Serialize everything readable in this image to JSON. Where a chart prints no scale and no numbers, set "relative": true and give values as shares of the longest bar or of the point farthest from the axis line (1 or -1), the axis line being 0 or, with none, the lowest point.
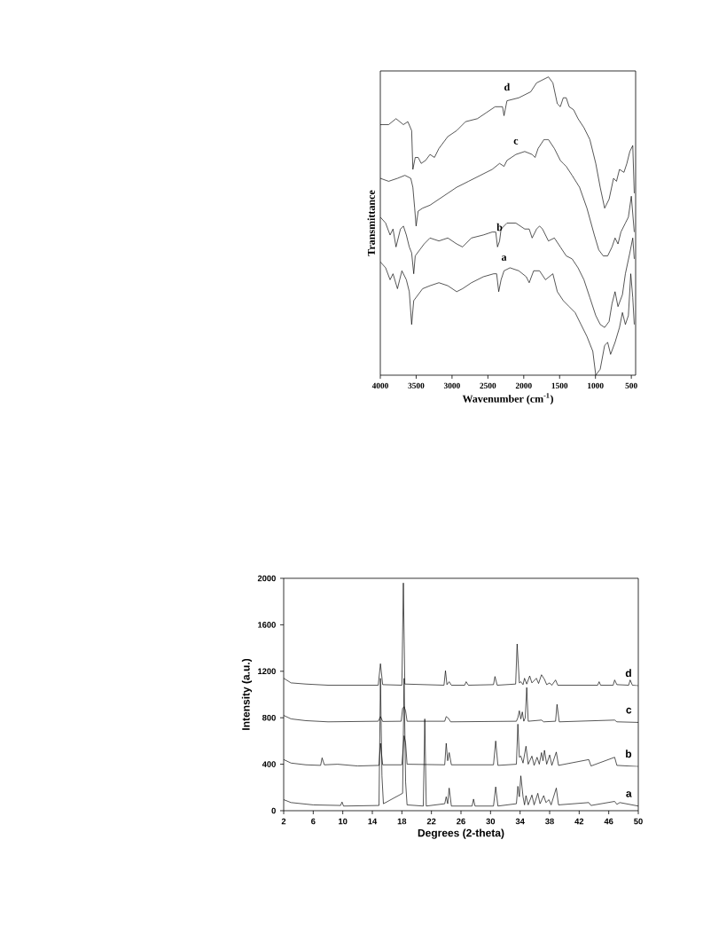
{
  "chart_data": [
    {
      "type": "line",
      "relative": true,
      "xlabel": "Wavenumber (cm$^{-1}$)",
      "ylabel": "Transmittance",
      "xlim": [
        4000,
        440
      ],
      "xticks": [
        4000,
        3500,
        3000,
        2500,
        2000,
        1500,
        1000,
        500
      ],
      "tick_labels": "x",
      "legend": false,
      "series": [
        {
          "name": "d",
          "color": "#000000",
          "x": [
            4000,
            3884,
            3781,
            3678,
            3616,
            3563,
            3546,
            3513,
            3472,
            3430,
            3369,
            3307,
            3245,
            3183,
            3059,
            2935,
            2811,
            2646,
            2523,
            2399,
            2296,
            2275,
            2234,
            2069,
            1903,
            1821,
            1738,
            1656,
            1594,
            1532,
            1490,
            1449,
            1408,
            1367,
            1305,
            1243,
            1161,
            1078,
            996,
            934,
            872,
            810,
            748,
            707,
            665,
            603,
            562,
            521,
            480,
            459
          ],
          "values": [
            0.84,
            0.84,
            0.86,
            0.84,
            0.85,
            0.82,
            0.69,
            0.73,
            0.73,
            0.71,
            0.72,
            0.74,
            0.73,
            0.76,
            0.8,
            0.82,
            0.85,
            0.86,
            0.88,
            0.9,
            0.9,
            0.87,
            0.92,
            0.93,
            0.95,
            0.98,
            0.99,
            1.0,
            0.98,
            0.91,
            0.9,
            0.93,
            0.93,
            0.9,
            0.89,
            0.86,
            0.83,
            0.79,
            0.71,
            0.63,
            0.56,
            0.59,
            0.66,
            0.65,
            0.69,
            0.68,
            0.71,
            0.75,
            0.77,
            0.61
          ]
        },
        {
          "name": "c",
          "color": "#000000",
          "x": [
            4000,
            3884,
            3761,
            3657,
            3575,
            3546,
            3521,
            3501,
            3472,
            3410,
            3307,
            3183,
            3059,
            2935,
            2770,
            2605,
            2440,
            2337,
            2275,
            2234,
            2110,
            1986,
            1883,
            1842,
            1800,
            1718,
            1656,
            1573,
            1490,
            1449,
            1408,
            1326,
            1222,
            1119,
            1016,
            954,
            892,
            830,
            769,
            727,
            686,
            645,
            583,
            541,
            500,
            459
          ],
          "values": [
            0.66,
            0.65,
            0.66,
            0.67,
            0.66,
            0.63,
            0.56,
            0.5,
            0.55,
            0.56,
            0.57,
            0.59,
            0.61,
            0.63,
            0.65,
            0.67,
            0.69,
            0.71,
            0.7,
            0.72,
            0.74,
            0.75,
            0.74,
            0.73,
            0.76,
            0.79,
            0.79,
            0.76,
            0.72,
            0.71,
            0.7,
            0.67,
            0.63,
            0.56,
            0.47,
            0.42,
            0.4,
            0.4,
            0.43,
            0.46,
            0.44,
            0.48,
            0.51,
            0.53,
            0.6,
            0.48
          ]
        },
        {
          "name": "b",
          "color": "#000000",
          "x": [
            4000,
            3926,
            3864,
            3823,
            3781,
            3719,
            3678,
            3637,
            3596,
            3563,
            3534,
            3513,
            3451,
            3389,
            3307,
            3183,
            3059,
            2935,
            2853,
            2729,
            2564,
            2440,
            2390,
            2366,
            2337,
            2316,
            2234,
            2110,
            1986,
            1924,
            1883,
            1821,
            1780,
            1738,
            1656,
            1573,
            1490,
            1408,
            1326,
            1243,
            1161,
            1078,
            996,
            934,
            872,
            810,
            769,
            727,
            686,
            624,
            583,
            521,
            480,
            459
          ],
          "values": [
            0.53,
            0.51,
            0.47,
            0.49,
            0.43,
            0.49,
            0.5,
            0.47,
            0.43,
            0.41,
            0.34,
            0.4,
            0.42,
            0.44,
            0.46,
            0.45,
            0.46,
            0.44,
            0.43,
            0.46,
            0.47,
            0.48,
            0.48,
            0.43,
            0.45,
            0.49,
            0.51,
            0.51,
            0.49,
            0.49,
            0.46,
            0.49,
            0.5,
            0.49,
            0.45,
            0.46,
            0.43,
            0.4,
            0.39,
            0.36,
            0.32,
            0.26,
            0.2,
            0.17,
            0.16,
            0.18,
            0.24,
            0.28,
            0.23,
            0.27,
            0.34,
            0.41,
            0.46,
            0.39
          ]
        },
        {
          "name": "a",
          "color": "#000000",
          "x": [
            4000,
            3926,
            3864,
            3823,
            3761,
            3699,
            3637,
            3596,
            3563,
            3534,
            3472,
            3410,
            3307,
            3183,
            3059,
            2935,
            2853,
            2729,
            2564,
            2419,
            2378,
            2349,
            2316,
            2275,
            2192,
            2069,
            1965,
            1924,
            1862,
            1780,
            1697,
            1594,
            1532,
            1449,
            1367,
            1284,
            1202,
            1119,
            1037,
            996,
            934,
            872,
            830,
            789,
            727,
            665,
            624,
            583,
            541,
            508,
            480,
            459
          ],
          "values": [
            0.38,
            0.36,
            0.32,
            0.34,
            0.29,
            0.35,
            0.32,
            0.28,
            0.17,
            0.25,
            0.27,
            0.29,
            0.3,
            0.31,
            0.3,
            0.28,
            0.29,
            0.31,
            0.33,
            0.34,
            0.34,
            0.28,
            0.32,
            0.35,
            0.36,
            0.35,
            0.33,
            0.31,
            0.35,
            0.35,
            0.32,
            0.34,
            0.28,
            0.25,
            0.23,
            0.21,
            0.17,
            0.13,
            0.08,
            0.0,
            0.02,
            0.1,
            0.11,
            0.07,
            0.11,
            0.16,
            0.21,
            0.17,
            0.2,
            0.34,
            0.26,
            0.17
          ]
        }
      ]
    },
    {
      "type": "line",
      "xlabel": "Degrees (2-theta)",
      "ylabel": "Intensity (a.u.)",
      "xlim": [
        2,
        50
      ],
      "ylim": [
        0,
        2000
      ],
      "xticks": [
        2,
        6,
        10,
        14,
        18,
        22,
        26,
        30,
        34,
        38,
        42,
        46,
        50
      ],
      "yticks": [
        0,
        400,
        800,
        1200,
        1600,
        2000
      ],
      "legend": false,
      "series": [
        {
          "name": "d",
          "color": "#000000",
          "x": [
            2,
            3,
            5,
            8,
            14.8,
            15.1,
            15.4,
            18,
            18.2,
            18.4,
            23.7,
            23.9,
            24.1,
            24.4,
            24.7,
            26.5,
            26.7,
            27,
            30.4,
            30.6,
            30.9,
            33.4,
            33.6,
            33.9,
            34.1,
            34.4,
            34.6,
            34.9,
            35.3,
            35.6,
            36.2,
            36.5,
            36.9,
            37.3,
            37.6,
            38,
            38.3,
            38.8,
            39.1,
            44.5,
            44.7,
            44.9,
            46.6,
            46.8,
            47.1,
            48.7,
            48.9,
            49.2,
            50
          ],
          "values": [
            1140,
            1100,
            1090,
            1080,
            1080,
            1265,
            1085,
            1080,
            1960,
            1090,
            1080,
            1205,
            1085,
            1110,
            1080,
            1080,
            1110,
            1080,
            1085,
            1155,
            1080,
            1090,
            1435,
            1100,
            1110,
            1085,
            1140,
            1090,
            1160,
            1100,
            1140,
            1095,
            1170,
            1130,
            1085,
            1100,
            1080,
            1125,
            1080,
            1080,
            1110,
            1080,
            1080,
            1125,
            1085,
            1080,
            1125,
            1080,
            1075
          ]
        },
        {
          "name": "c",
          "color": "#000000",
          "x": [
            2,
            3,
            5,
            8,
            14.8,
            15.1,
            15.4,
            17.9,
            18.1,
            18.3,
            18.5,
            18.7,
            23.8,
            24,
            24.3,
            24.6,
            33.5,
            33.7,
            33.9,
            34.1,
            34.3,
            34.5,
            34.7,
            34.9,
            35.1,
            36.9,
            37.2,
            38.8,
            39,
            39.3,
            46.8,
            47.1,
            50
          ],
          "values": [
            820,
            790,
            775,
            765,
            770,
            810,
            768,
            770,
            880,
            895,
            860,
            770,
            770,
            810,
            795,
            765,
            770,
            800,
            860,
            790,
            850,
            770,
            800,
            1060,
            770,
            780,
            765,
            770,
            915,
            765,
            780,
            765,
            760
          ]
        },
        {
          "name": "b",
          "color": "#000000",
          "x": [
            2,
            3,
            5,
            7,
            7.2,
            7.5,
            9.3,
            12,
            14.9,
            15.1,
            15.4,
            18,
            18.3,
            18.5,
            18.7,
            23.8,
            24,
            24.2,
            24.4,
            24.7,
            30.4,
            30.7,
            31,
            33.5,
            33.7,
            33.9,
            34.1,
            34.4,
            34.8,
            35.1,
            35.6,
            35.9,
            36.3,
            36.6,
            36.9,
            37.1,
            37.3,
            37.6,
            38,
            38.3,
            38.9,
            39.2,
            43.3,
            43.6,
            46.8,
            47.1,
            50
          ],
          "values": [
            440,
            410,
            395,
            390,
            455,
            395,
            400,
            385,
            390,
            580,
            395,
            395,
            645,
            585,
            400,
            395,
            580,
            430,
            500,
            395,
            395,
            600,
            390,
            400,
            745,
            460,
            470,
            410,
            555,
            400,
            470,
            390,
            460,
            400,
            500,
            430,
            520,
            400,
            480,
            390,
            505,
            390,
            440,
            385,
            460,
            390,
            380
          ]
        },
        {
          "name": "a",
          "color": "#000000",
          "x": [
            2,
            3,
            6,
            9.7,
            9.9,
            10.1,
            14.9,
            15.1,
            15.3,
            15.5,
            18.1,
            18.3,
            18.5,
            18.7,
            20.9,
            21.1,
            21.3,
            23.8,
            24,
            24.2,
            24.4,
            24.7,
            27.5,
            27.7,
            27.9,
            30.4,
            30.7,
            31,
            33.5,
            33.7,
            33.9,
            34.1,
            34.4,
            34.6,
            34.8,
            35.1,
            35.6,
            35.9,
            36.4,
            36.7,
            37.2,
            37.5,
            37.9,
            38.2,
            38.9,
            39.2,
            43.3,
            43.6,
            46.8,
            47.1,
            47.5,
            50
          ],
          "values": [
            95,
            70,
            50,
            45,
            75,
            40,
            45,
            1140,
            300,
            60,
            150,
            1140,
            250,
            50,
            40,
            790,
            40,
            60,
            120,
            60,
            195,
            40,
            40,
            100,
            40,
            40,
            205,
            40,
            60,
            210,
            120,
            300,
            120,
            50,
            130,
            50,
            135,
            50,
            150,
            60,
            130,
            70,
            95,
            50,
            195,
            50,
            70,
            45,
            80,
            55,
            70,
            40
          ]
        }
      ]
    }
  ]
}
